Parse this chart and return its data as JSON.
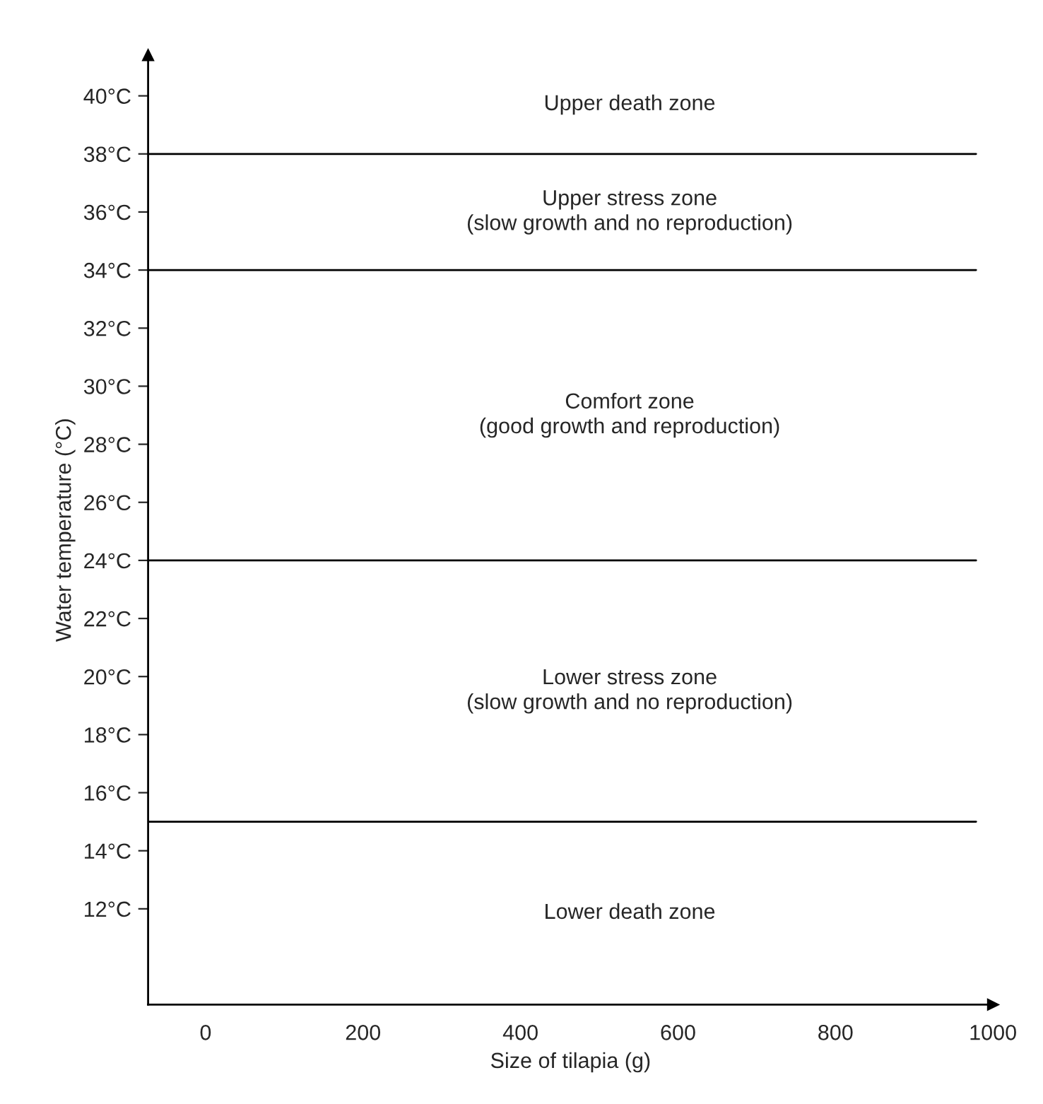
{
  "chart_data": {
    "type": "line",
    "xlabel": "Size of tilapia (g)",
    "ylabel": "Water temperature (°C)",
    "xlim": [
      -73,
      1000
    ],
    "ylim": [
      8.7,
      41.4
    ],
    "xticks": [
      0,
      200,
      400,
      600,
      800,
      1000
    ],
    "yticks": [
      {
        "value": 12,
        "label": "12°C"
      },
      {
        "value": 14,
        "label": "14°C"
      },
      {
        "value": 16,
        "label": "16°C"
      },
      {
        "value": 18,
        "label": "18°C"
      },
      {
        "value": 20,
        "label": "20°C"
      },
      {
        "value": 22,
        "label": "22°C"
      },
      {
        "value": 24,
        "label": "24°C"
      },
      {
        "value": 26,
        "label": "26°C"
      },
      {
        "value": 28,
        "label": "28°C"
      },
      {
        "value": 30,
        "label": "30°C"
      },
      {
        "value": 32,
        "label": "32°C"
      },
      {
        "value": 34,
        "label": "34°C"
      },
      {
        "value": 36,
        "label": "36°C"
      },
      {
        "value": 38,
        "label": "38°C"
      },
      {
        "value": 40,
        "label": "40°C"
      }
    ],
    "ref_lines": [
      {
        "axis": "y",
        "value": 38,
        "color": "#000000"
      },
      {
        "axis": "y",
        "value": 34,
        "color": "#000000"
      },
      {
        "axis": "y",
        "value": 24,
        "color": "#000000"
      },
      {
        "axis": "y",
        "value": 15,
        "color": "#000000"
      }
    ],
    "annotations": [
      "Upper death zone",
      "Upper stress zone\n(slow growth and no reproduction)",
      "Comfort zone\n(good growth and reproduction)",
      "Lower stress zone\n(slow growth and no reproduction)",
      "Lower death zone"
    ]
  }
}
